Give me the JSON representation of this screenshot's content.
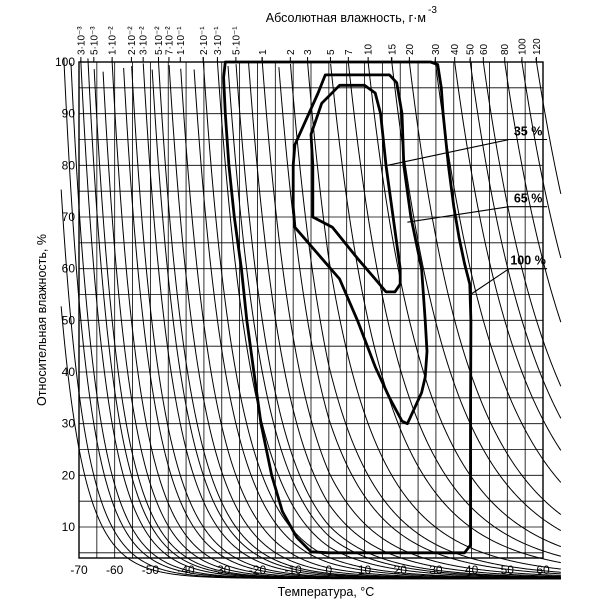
{
  "chart_data": {
    "type": "line",
    "title": "",
    "xlabel": "Температура, °С",
    "ylabel": "Относительная влажность, %",
    "top_axis_title_text": "Абсолютная влажность, г·м",
    "top_axis_title_exponent": "-3",
    "xlim": [
      -70,
      60
    ],
    "ylim": [
      4,
      100
    ],
    "x_ticks": [
      -70,
      -60,
      -50,
      -40,
      -30,
      -20,
      -10,
      0,
      10,
      20,
      30,
      40,
      50,
      60
    ],
    "x_tick_labels": [
      "-70",
      "-60",
      "-50",
      "-40",
      "-30",
      "-20",
      "-10",
      "0",
      "10",
      "20",
      "30",
      "40",
      "50",
      "60"
    ],
    "y_ticks": [
      10,
      20,
      30,
      40,
      50,
      60,
      70,
      80,
      90,
      100
    ],
    "y_tick_labels": [
      "10",
      "20",
      "30",
      "40",
      "50",
      "60",
      "70",
      "80",
      "90",
      "100"
    ],
    "grid": true,
    "absolute_humidity_isolines": {
      "unit": "г·м-3",
      "values": [
        0.003,
        0.005,
        0.01,
        0.02,
        0.03,
        0.05,
        0.07,
        0.1,
        0.2,
        0.3,
        0.5,
        1,
        2,
        3,
        5,
        7,
        10,
        15,
        20,
        30,
        40,
        50,
        60,
        80,
        100,
        120
      ],
      "labels": [
        "3·10⁻³",
        "5·10⁻³",
        "1·10⁻²",
        "2·10⁻²",
        "3·10⁻²",
        "5·10⁻²",
        "7·10⁻²",
        "1·10⁻¹",
        "2·10⁻¹",
        "3·10⁻¹",
        "5·10⁻¹",
        "1",
        "2",
        "3",
        "5",
        "7",
        "10",
        "15",
        "20",
        "30",
        "40",
        "50",
        "60",
        "80",
        "100",
        "120"
      ],
      "extra_unlabeled_values": [
        0.0007,
        0.001,
        0.0015,
        0.002,
        0.004,
        0.007,
        0.015,
        0.04,
        0.15,
        0.4,
        0.7,
        1.5
      ]
    },
    "series": [
      {
        "name": "100 %",
        "points": [
          [
            -29,
            100
          ],
          [
            -29.5,
            97
          ],
          [
            -29,
            90
          ],
          [
            -28,
            80
          ],
          [
            -26.5,
            70
          ],
          [
            -24.5,
            60
          ],
          [
            -23,
            50
          ],
          [
            -21,
            40
          ],
          [
            -19,
            30
          ],
          [
            -16,
            20
          ],
          [
            -13,
            13
          ],
          [
            -9,
            8
          ],
          [
            -5,
            5.2
          ],
          [
            0,
            5
          ],
          [
            38,
            5
          ],
          [
            39.7,
            6.5
          ],
          [
            39.7,
            30
          ],
          [
            39.8,
            50
          ],
          [
            39.5,
            57
          ],
          [
            38,
            61
          ],
          [
            36.5,
            66
          ],
          [
            35,
            72
          ],
          [
            33.5,
            80
          ],
          [
            32,
            90
          ],
          [
            31.5,
            95
          ],
          [
            30.5,
            99.5
          ],
          [
            28.5,
            100
          ],
          [
            -29,
            100
          ]
        ]
      },
      {
        "name": "65 %",
        "points": [
          [
            -9.5,
            68
          ],
          [
            -10,
            72
          ],
          [
            -10,
            80
          ],
          [
            -9.5,
            84
          ],
          [
            -3,
            94
          ],
          [
            -1,
            97.5
          ],
          [
            17,
            97.5
          ],
          [
            19,
            96
          ],
          [
            20.5,
            90
          ],
          [
            21,
            80
          ],
          [
            23,
            70
          ],
          [
            26,
            60
          ],
          [
            27,
            50
          ],
          [
            27.5,
            44
          ],
          [
            27,
            39
          ],
          [
            26,
            36
          ],
          [
            24,
            33
          ],
          [
            22,
            30
          ],
          [
            20.5,
            30.5
          ],
          [
            17,
            35
          ],
          [
            13,
            41
          ],
          [
            8,
            50
          ],
          [
            3,
            58
          ],
          [
            -2,
            62
          ],
          [
            -9.5,
            68
          ]
        ]
      },
      {
        "name": "35 %",
        "points": [
          [
            -5,
            86
          ],
          [
            -2,
            92
          ],
          [
            3,
            95.5
          ],
          [
            10,
            95.5
          ],
          [
            13,
            94
          ],
          [
            14.5,
            90
          ],
          [
            16,
            80
          ],
          [
            18,
            70
          ],
          [
            20,
            60
          ],
          [
            20,
            57
          ],
          [
            18.5,
            55.5
          ],
          [
            16,
            55.5
          ],
          [
            13,
            58
          ],
          [
            8,
            62
          ],
          [
            1,
            68
          ],
          [
            -4.5,
            70
          ],
          [
            -4.5,
            80
          ],
          [
            -5,
            86
          ]
        ]
      }
    ],
    "annotations": [
      {
        "text": "35 %",
        "target": [
          16.5,
          80
        ],
        "label": [
          50.5,
          85
        ]
      },
      {
        "text": "65 %",
        "target": [
          22,
          69
        ],
        "label": [
          50.5,
          72
        ]
      },
      {
        "text": "100 %",
        "target": [
          39.7,
          55
        ],
        "label": [
          50.5,
          60
        ]
      }
    ]
  }
}
